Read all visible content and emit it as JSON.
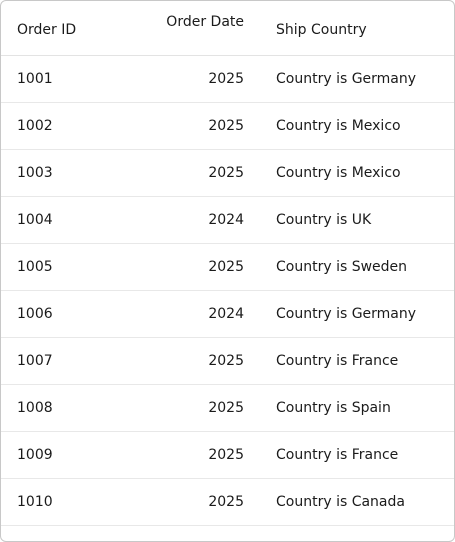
{
  "columns": {
    "order_id": "Order ID",
    "order_date": "Order Date",
    "ship_country": "Ship Country"
  },
  "rows": [
    {
      "order_id": "1001",
      "order_date": "2025",
      "ship_country": "Country is Germany"
    },
    {
      "order_id": "1002",
      "order_date": "2025",
      "ship_country": "Country is Mexico"
    },
    {
      "order_id": "1003",
      "order_date": "2025",
      "ship_country": "Country is Mexico"
    },
    {
      "order_id": "1004",
      "order_date": "2024",
      "ship_country": "Country is UK"
    },
    {
      "order_id": "1005",
      "order_date": "2025",
      "ship_country": "Country is Sweden"
    },
    {
      "order_id": "1006",
      "order_date": "2024",
      "ship_country": "Country is Germany"
    },
    {
      "order_id": "1007",
      "order_date": "2025",
      "ship_country": "Country is France"
    },
    {
      "order_id": "1008",
      "order_date": "2025",
      "ship_country": "Country is Spain"
    },
    {
      "order_id": "1009",
      "order_date": "2025",
      "ship_country": "Country is France"
    },
    {
      "order_id": "1010",
      "order_date": "2025",
      "ship_country": "Country is Canada"
    }
  ]
}
